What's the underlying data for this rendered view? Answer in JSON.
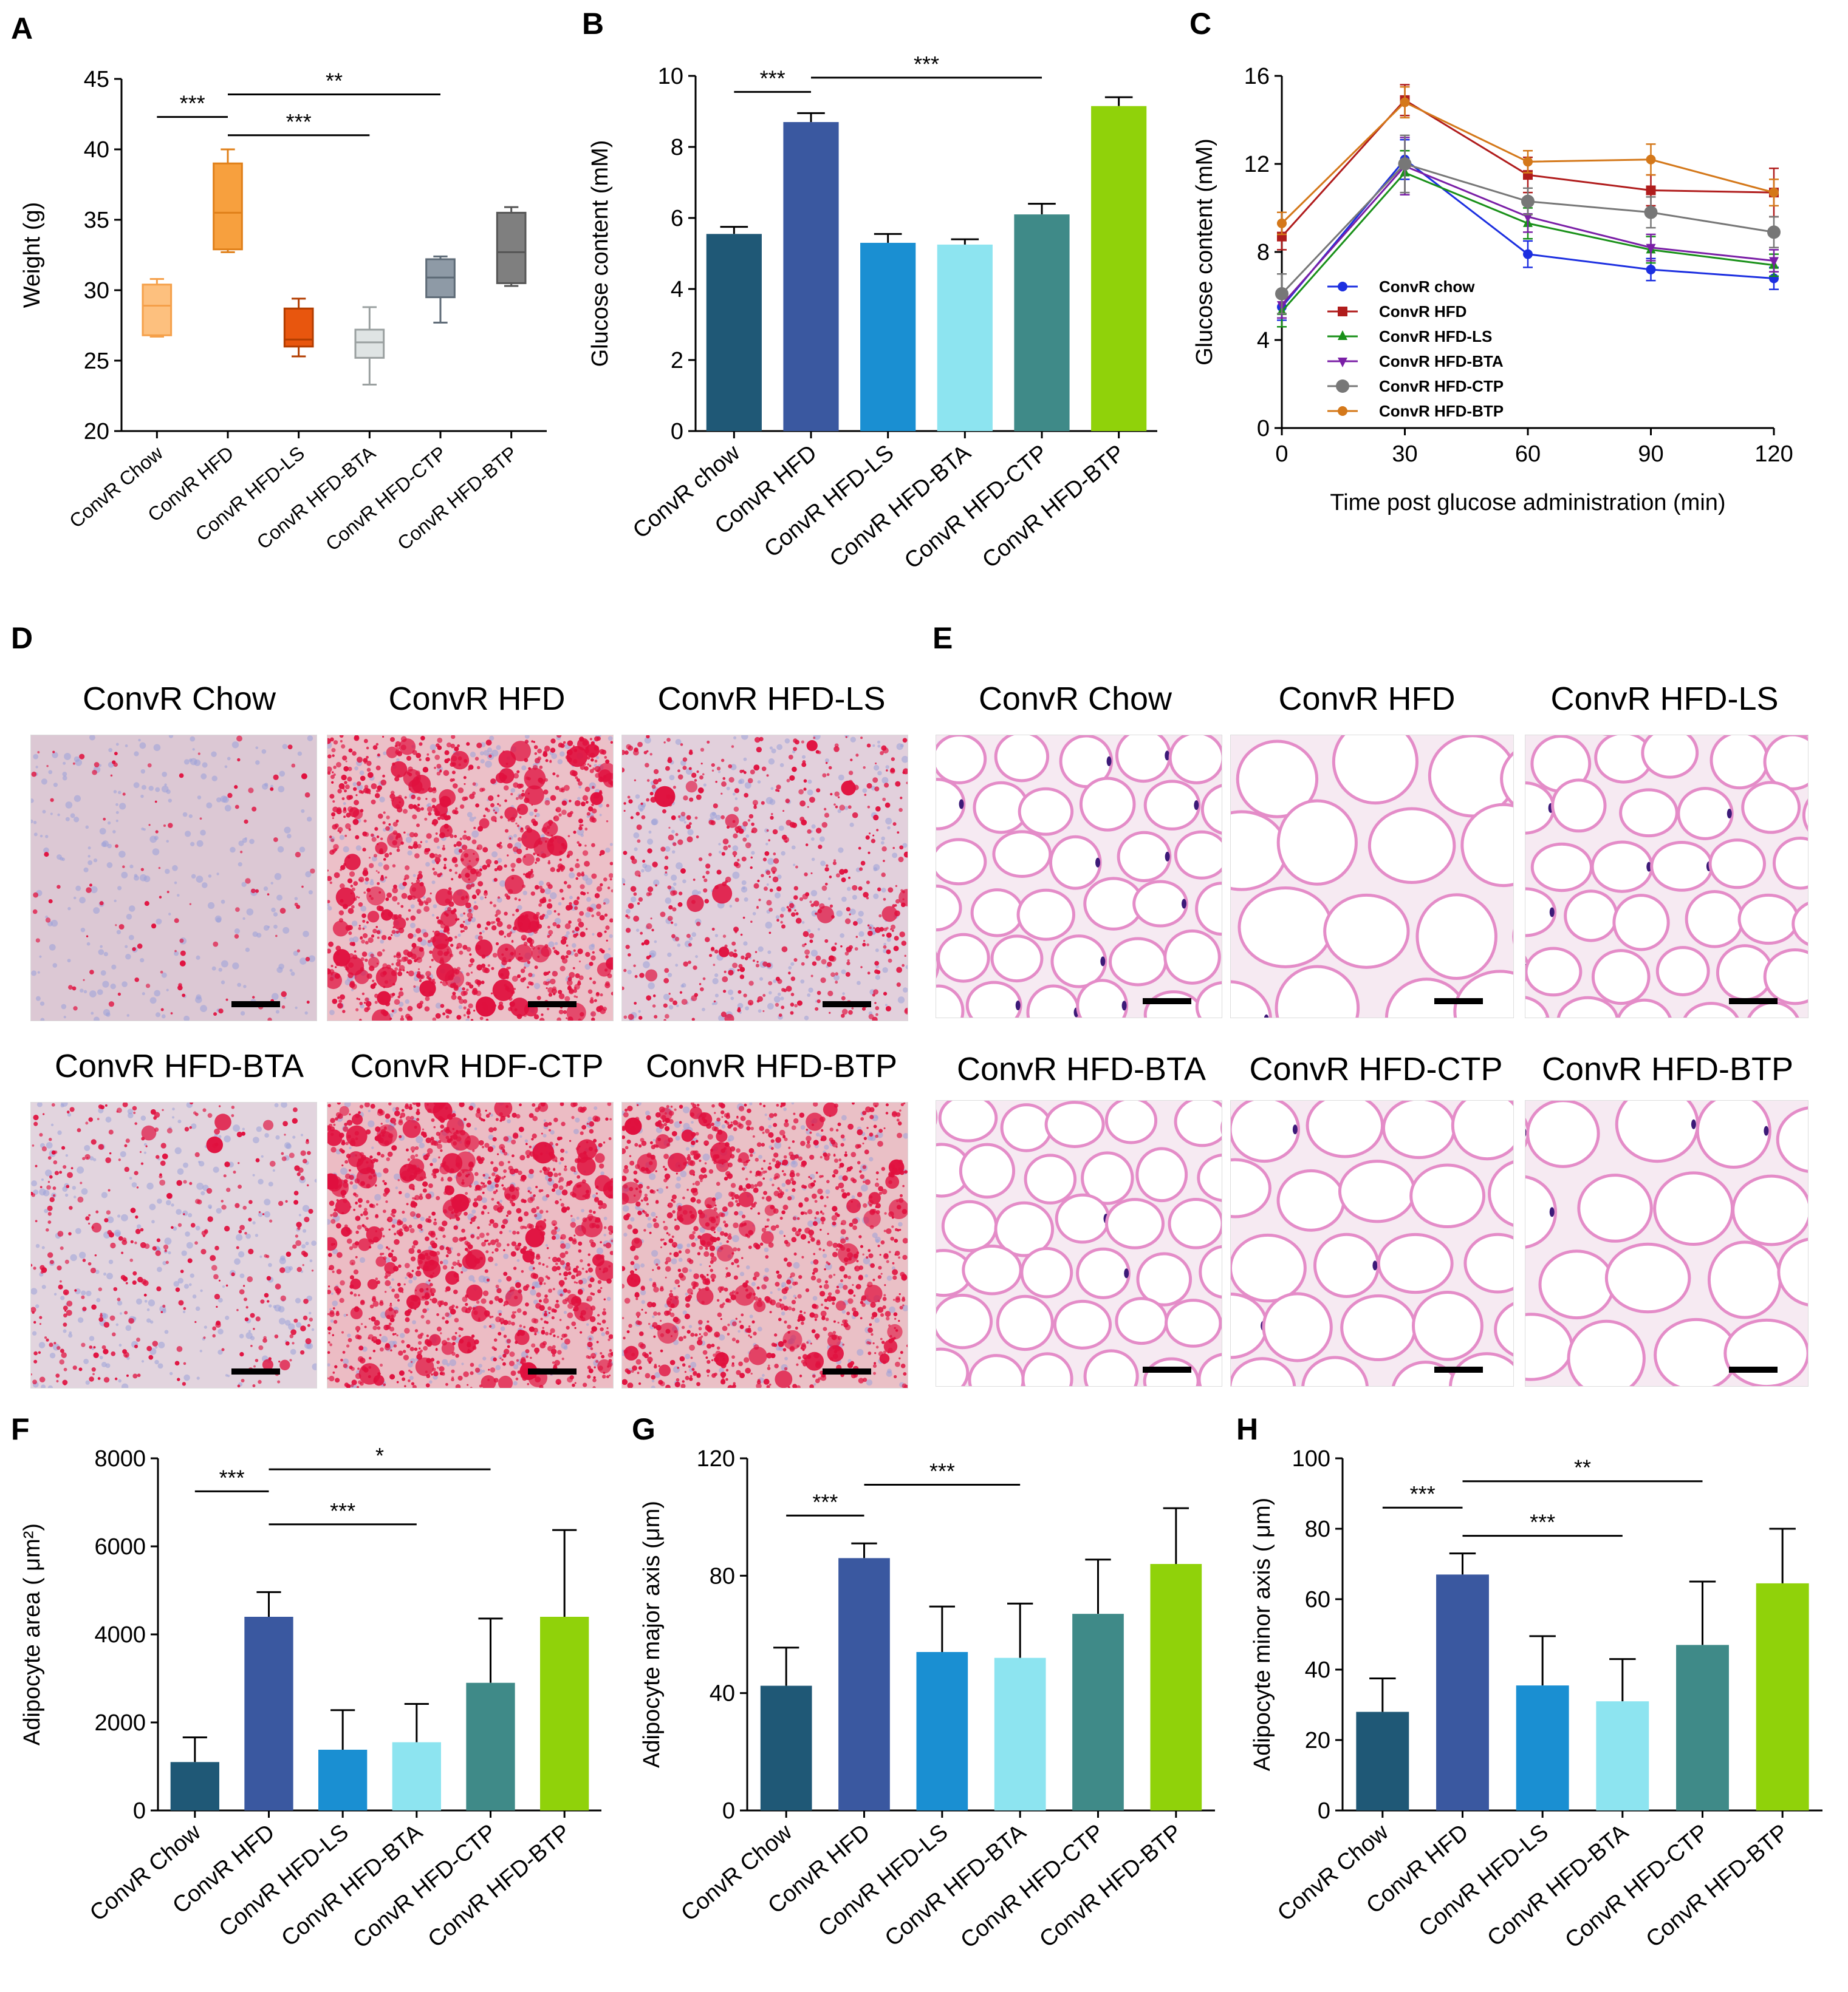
{
  "panel_labels": {
    "A": "A",
    "B": "B",
    "C": "C",
    "D": "D",
    "E": "E",
    "F": "F",
    "G": "G",
    "H": "H"
  },
  "chart_data": [
    {
      "id": "A",
      "type": "box",
      "ylabel": "Weight (g)",
      "ylim": [
        20,
        45
      ],
      "yticks": [
        20,
        25,
        30,
        35,
        40,
        45
      ],
      "categories": [
        "ConvR Chow",
        "ConvR HFD",
        "ConvR HFD-LS",
        "ConvR HFD-BTA",
        "ConvR HFD-CTP",
        "ConvR HFD-BTP"
      ],
      "boxes": [
        {
          "min": 26.7,
          "q1": 26.8,
          "median": 28.9,
          "q3": 30.4,
          "max": 30.8,
          "color": "#fdc07e",
          "edge": "#f5a04a"
        },
        {
          "min": 32.7,
          "q1": 32.9,
          "median": 35.5,
          "q3": 39.0,
          "max": 40.0,
          "color": "#f7a03e",
          "edge": "#e0801a"
        },
        {
          "min": 25.3,
          "q1": 26.0,
          "median": 26.5,
          "q3": 28.7,
          "max": 29.4,
          "color": "#e8560e",
          "edge": "#b23d00"
        },
        {
          "min": 23.3,
          "q1": 25.2,
          "median": 26.3,
          "q3": 27.2,
          "max": 28.8,
          "color": "#dfe4e4",
          "edge": "#9aa0a0"
        },
        {
          "min": 27.7,
          "q1": 29.5,
          "median": 30.9,
          "q3": 32.2,
          "max": 32.4,
          "color": "#8e9aa6",
          "edge": "#5d6a76"
        },
        {
          "min": 30.3,
          "q1": 30.5,
          "median": 32.7,
          "q3": 35.5,
          "max": 35.9,
          "color": "#7f7f7f",
          "edge": "#555555"
        }
      ],
      "sig": [
        {
          "from": 0,
          "to": 1,
          "label": "***",
          "y": 42.3
        },
        {
          "from": 1,
          "to": 4,
          "label": "**",
          "y": 43.9
        },
        {
          "from": 1,
          "to": 3,
          "label": "***",
          "y": 41.0
        }
      ]
    },
    {
      "id": "B",
      "type": "bar",
      "ylabel": "Glucose content (mM)",
      "ylim": [
        0,
        10
      ],
      "yticks": [
        0,
        2,
        4,
        6,
        8,
        10
      ],
      "categories": [
        "ConvR chow",
        "ConvR HFD",
        "ConvR HFD-LS",
        "ConvR HFD-BTA",
        "ConvR HFD-CTP",
        "ConvR HFD-BTP"
      ],
      "values": [
        5.55,
        8.7,
        5.3,
        5.25,
        6.1,
        9.15
      ],
      "errors": [
        0.2,
        0.25,
        0.25,
        0.15,
        0.3,
        0.25
      ],
      "colors": [
        "#1f5876",
        "#3a58a0",
        "#1a8fd2",
        "#8de4f0",
        "#3f8a88",
        "#90d20a"
      ],
      "sig": [
        {
          "from": 0,
          "to": 1,
          "label": "***",
          "y": 9.55
        },
        {
          "from": 1,
          "to": 4,
          "label": "***",
          "y": 9.95
        }
      ]
    },
    {
      "id": "C",
      "type": "line",
      "xlabel": "Time post glucose administration (min)",
      "ylabel": "Glucose content (mM)",
      "x": [
        0,
        30,
        60,
        90,
        120
      ],
      "xlim": [
        0,
        120
      ],
      "ylim": [
        0,
        16
      ],
      "xticks": [
        0,
        30,
        60,
        90,
        120
      ],
      "yticks": [
        0,
        4,
        8,
        12,
        16
      ],
      "legend_position": "center-left",
      "series": [
        {
          "name": "ConvR chow",
          "values": [
            5.5,
            12.2,
            7.9,
            7.2,
            6.8
          ],
          "errors": [
            0.6,
            0.9,
            0.6,
            0.5,
            0.5
          ],
          "color": "#1c2fe0",
          "marker": "circle"
        },
        {
          "name": "ConvR HFD",
          "values": [
            8.7,
            14.9,
            11.5,
            10.8,
            10.7
          ],
          "errors": [
            0.6,
            0.7,
            0.8,
            0.7,
            1.1
          ],
          "color": "#b01c1c",
          "marker": "square"
        },
        {
          "name": "ConvR HFD-LS",
          "values": [
            5.3,
            11.6,
            9.3,
            8.1,
            7.4
          ],
          "errors": [
            0.7,
            1.0,
            0.7,
            0.6,
            0.5
          ],
          "color": "#199019",
          "marker": "triangle-up"
        },
        {
          "name": "ConvR HFD-BTA",
          "values": [
            5.6,
            11.9,
            9.6,
            8.2,
            7.6
          ],
          "errors": [
            0.6,
            1.3,
            0.7,
            0.6,
            0.5
          ],
          "color": "#7a1fa6",
          "marker": "triangle-down"
        },
        {
          "name": "ConvR HFD-CTP",
          "values": [
            6.1,
            12.0,
            10.3,
            9.8,
            8.9
          ],
          "errors": [
            0.9,
            1.3,
            0.6,
            0.7,
            0.7
          ],
          "color": "#777777",
          "marker": "circle"
        },
        {
          "name": "ConvR HFD-BTP",
          "values": [
            9.3,
            14.8,
            12.1,
            12.2,
            10.7
          ],
          "errors": [
            0.5,
            0.7,
            0.5,
            0.7,
            0.6
          ],
          "color": "#d4781a",
          "marker": "circle"
        }
      ]
    },
    {
      "id": "F",
      "type": "bar",
      "ylabel": "Adipocyte area ( μm²)",
      "ylim": [
        0,
        8000
      ],
      "yticks": [
        0,
        2000,
        4000,
        6000,
        8000
      ],
      "categories": [
        "ConvR Chow",
        "ConvR HFD",
        "ConvR HFD-LS",
        "ConvR HFD-BTA",
        "ConvR HFD-CTP",
        "ConvR HFD-BTP"
      ],
      "values": [
        1100,
        4400,
        1380,
        1550,
        2900,
        4400
      ],
      "errors": [
        560,
        560,
        900,
        870,
        1460,
        1970
      ],
      "colors": [
        "#1f5876",
        "#3a58a0",
        "#1a8fd2",
        "#8de4f0",
        "#3f8a88",
        "#90d20a"
      ],
      "sig": [
        {
          "from": 0,
          "to": 1,
          "label": "***",
          "y": 7250
        },
        {
          "from": 1,
          "to": 4,
          "label": "*",
          "y": 7750
        },
        {
          "from": 1,
          "to": 3,
          "label": "***",
          "y": 6500
        }
      ]
    },
    {
      "id": "G",
      "type": "bar",
      "ylabel": "Adipocyte major axis (μm)",
      "ylim": [
        0,
        120
      ],
      "yticks": [
        0,
        40,
        80,
        120
      ],
      "categories": [
        "ConvR Chow",
        "ConvR HFD",
        "ConvR HFD-LS",
        "ConvR HFD-BTA",
        "ConvR HFD-CTP",
        "ConvR HFD-BTP"
      ],
      "values": [
        42.5,
        86,
        54,
        52,
        67,
        84
      ],
      "errors": [
        13,
        5,
        15.5,
        18.5,
        18.5,
        19
      ],
      "colors": [
        "#1f5876",
        "#3a58a0",
        "#1a8fd2",
        "#8de4f0",
        "#3f8a88",
        "#90d20a"
      ],
      "sig": [
        {
          "from": 0,
          "to": 1,
          "label": "***",
          "y": 100.5
        },
        {
          "from": 1,
          "to": 3,
          "label": "***",
          "y": 111
        }
      ]
    },
    {
      "id": "H",
      "type": "bar",
      "ylabel": "Adipocyte minor axis ( μm)",
      "ylim": [
        0,
        100
      ],
      "yticks": [
        0,
        20,
        40,
        60,
        80,
        100
      ],
      "categories": [
        "ConvR Chow",
        "ConvR HFD",
        "ConvR HFD-LS",
        "ConvR HFD-BTA",
        "ConvR HFD-CTP",
        "ConvR HFD-BTP"
      ],
      "values": [
        28,
        67,
        35.5,
        31,
        47,
        64.5
      ],
      "errors": [
        9.5,
        6,
        14,
        12,
        18,
        15.5
      ],
      "colors": [
        "#1f5876",
        "#3a58a0",
        "#1a8fd2",
        "#8de4f0",
        "#3f8a88",
        "#90d20a"
      ],
      "sig": [
        {
          "from": 0,
          "to": 1,
          "label": "***",
          "y": 86
        },
        {
          "from": 1,
          "to": 4,
          "label": "**",
          "y": 93.5
        },
        {
          "from": 1,
          "to": 3,
          "label": "***",
          "y": 78
        }
      ]
    }
  ],
  "micrographs": {
    "D": {
      "stain": "oil-red-o",
      "titles": [
        "ConvR Chow",
        "ConvR HFD",
        "ConvR HFD-LS",
        "ConvR HFD-BTA",
        "ConvR HDF-CTP",
        "ConvR HFD-BTP"
      ],
      "background_colors": [
        "#dcc8d4",
        "#ecc0c8",
        "#e2d0dc",
        "#e2d4de",
        "#ecbcc4",
        "#eac0c6"
      ],
      "droplet_color": "#e0103e",
      "droplet_density": [
        0.05,
        0.9,
        0.4,
        0.25,
        0.95,
        0.85
      ]
    },
    "E": {
      "stain": "H&E",
      "titles": [
        "ConvR Chow",
        "ConvR HFD",
        "ConvR HFD-LS",
        "ConvR HFD-BTA",
        "ConvR HFD-CTP",
        "ConvR HFD-BTP"
      ],
      "membrane_color": "#e48cc8",
      "nucleus_color": "#3c1a78",
      "cell_scale": [
        1.0,
        1.6,
        1.05,
        1.0,
        1.3,
        1.45
      ]
    }
  }
}
